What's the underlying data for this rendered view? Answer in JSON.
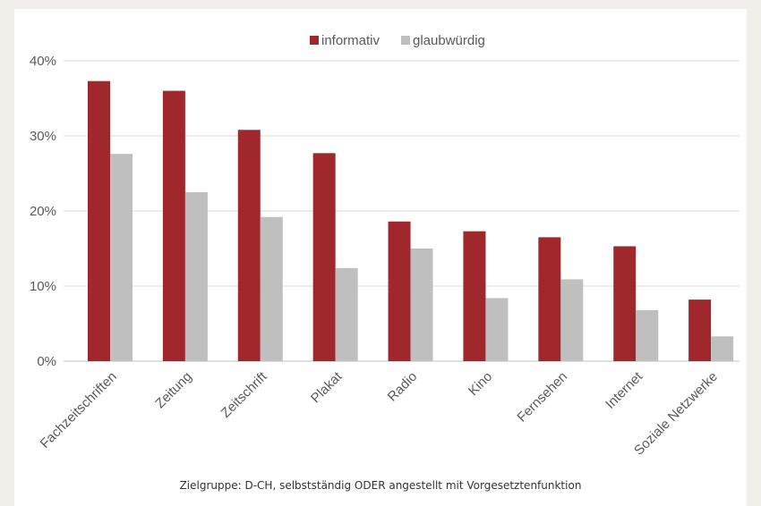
{
  "chart_data": {
    "type": "bar",
    "categories": [
      "Fachzeitschriften",
      "Zeitung",
      "Zeitschrift",
      "Plakat",
      "Radio",
      "Kino",
      "Fernsehen",
      "Internet",
      "Soziale Netzwerke"
    ],
    "series": [
      {
        "name": "informativ",
        "color": "#a0282d",
        "values": [
          37.3,
          36.0,
          30.8,
          27.7,
          18.6,
          17.3,
          16.5,
          15.3,
          8.2
        ]
      },
      {
        "name": "glaubwürdig",
        "color": "#bfbfbf",
        "values": [
          27.6,
          22.5,
          19.2,
          12.4,
          15.0,
          8.4,
          10.9,
          6.8,
          3.3
        ]
      }
    ],
    "ylim": [
      0,
      40
    ],
    "yticks": [
      "0%",
      "10%",
      "20%",
      "30%",
      "40%"
    ],
    "grid": true,
    "legend_position": "top"
  },
  "caption": "Zielgruppe: D-CH, selbstständig ODER angestellt mit Vorgesetztenfunktion"
}
